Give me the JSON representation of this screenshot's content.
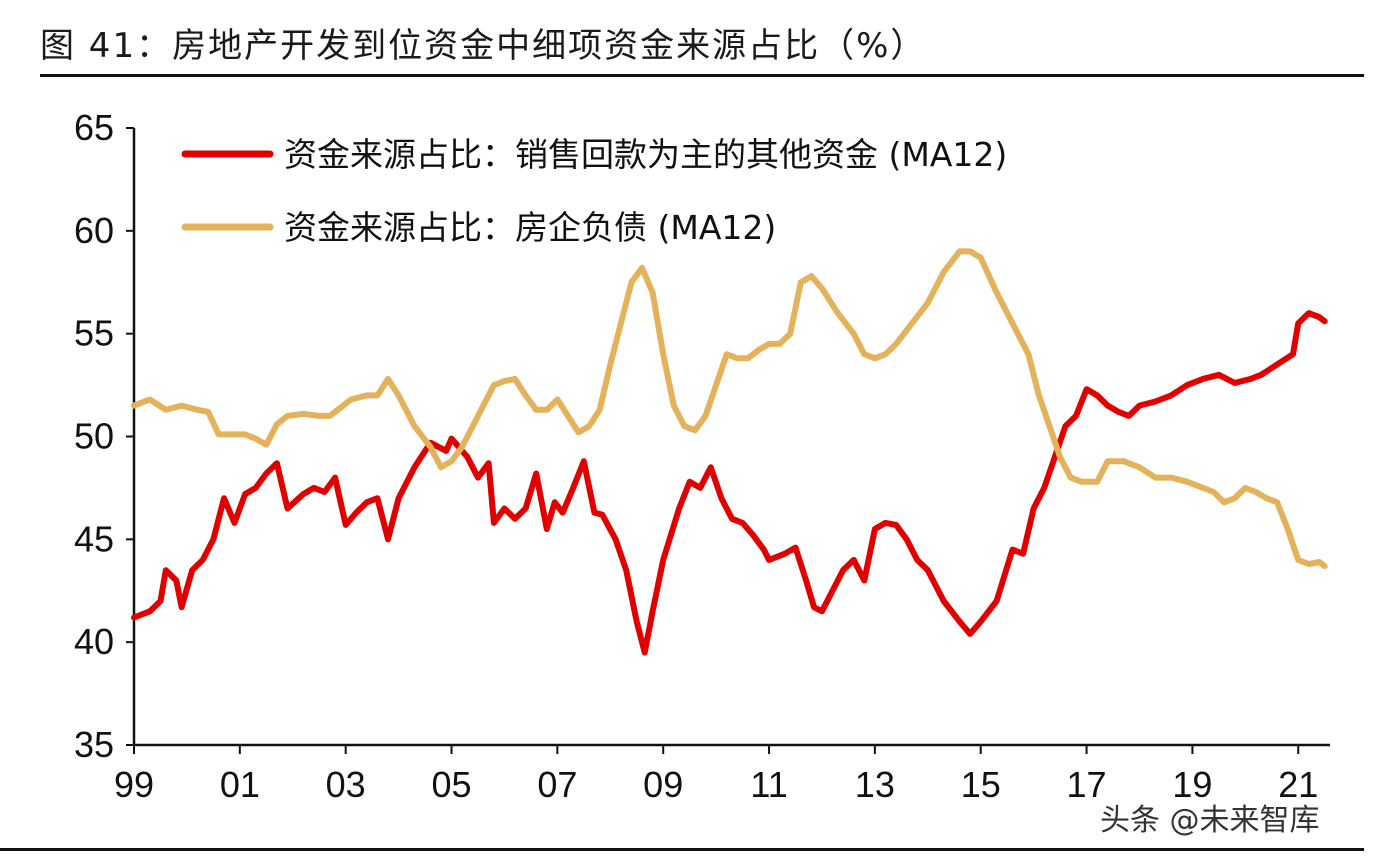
{
  "title": "图 41：房地产开发到位资金中细项资金来源占比（%）",
  "watermark": "头条 @未来智库",
  "chart_data": {
    "type": "line",
    "title": "图 41：房地产开发到位资金中细项资金来源占比（%）",
    "unit": "%",
    "xlabel": "",
    "ylabel": "",
    "ylim": [
      35,
      65
    ],
    "yticks": [
      "35",
      "40",
      "45",
      "50",
      "55",
      "60",
      "65"
    ],
    "xlim": [
      1999,
      2021.6
    ],
    "xticks": [
      "99",
      "01",
      "03",
      "05",
      "07",
      "09",
      "11",
      "13",
      "15",
      "17",
      "19",
      "21"
    ],
    "legend_position": "top-left",
    "series": [
      {
        "name": "资金来源占比：销售回款为主的其他资金 (MA12)",
        "color": "#e00000",
        "points": [
          [
            1999.0,
            41.2
          ],
          [
            1999.3,
            41.5
          ],
          [
            1999.5,
            42.0
          ],
          [
            1999.6,
            43.5
          ],
          [
            1999.8,
            43.0
          ],
          [
            1999.9,
            41.7
          ],
          [
            2000.1,
            43.5
          ],
          [
            2000.3,
            44.0
          ],
          [
            2000.5,
            45.0
          ],
          [
            2000.7,
            47.0
          ],
          [
            2000.9,
            45.8
          ],
          [
            2001.1,
            47.2
          ],
          [
            2001.3,
            47.5
          ],
          [
            2001.5,
            48.2
          ],
          [
            2001.7,
            48.7
          ],
          [
            2001.9,
            46.5
          ],
          [
            2002.2,
            47.2
          ],
          [
            2002.4,
            47.5
          ],
          [
            2002.6,
            47.3
          ],
          [
            2002.8,
            48.0
          ],
          [
            2003.0,
            45.7
          ],
          [
            2003.2,
            46.3
          ],
          [
            2003.4,
            46.8
          ],
          [
            2003.6,
            47.0
          ],
          [
            2003.8,
            45.0
          ],
          [
            2004.0,
            47.0
          ],
          [
            2004.3,
            48.5
          ],
          [
            2004.6,
            49.7
          ],
          [
            2004.9,
            49.3
          ],
          [
            2005.0,
            49.9
          ],
          [
            2005.3,
            49.0
          ],
          [
            2005.5,
            48.0
          ],
          [
            2005.7,
            48.7
          ],
          [
            2005.8,
            45.8
          ],
          [
            2006.0,
            46.5
          ],
          [
            2006.2,
            46.0
          ],
          [
            2006.4,
            46.5
          ],
          [
            2006.6,
            48.2
          ],
          [
            2006.8,
            45.5
          ],
          [
            2006.95,
            46.8
          ],
          [
            2007.1,
            46.3
          ],
          [
            2007.3,
            47.5
          ],
          [
            2007.5,
            48.8
          ],
          [
            2007.7,
            46.3
          ],
          [
            2007.85,
            46.2
          ],
          [
            2008.1,
            45.0
          ],
          [
            2008.3,
            43.5
          ],
          [
            2008.5,
            41.0
          ],
          [
            2008.65,
            39.5
          ],
          [
            2008.8,
            41.5
          ],
          [
            2009.0,
            44.0
          ],
          [
            2009.3,
            46.5
          ],
          [
            2009.5,
            47.8
          ],
          [
            2009.7,
            47.5
          ],
          [
            2009.9,
            48.5
          ],
          [
            2010.1,
            47.0
          ],
          [
            2010.3,
            46.0
          ],
          [
            2010.5,
            45.8
          ],
          [
            2010.7,
            45.2
          ],
          [
            2010.9,
            44.5
          ],
          [
            2011.0,
            44.0
          ],
          [
            2011.3,
            44.3
          ],
          [
            2011.5,
            44.6
          ],
          [
            2011.7,
            43.0
          ],
          [
            2011.85,
            41.7
          ],
          [
            2012.0,
            41.5
          ],
          [
            2012.2,
            42.5
          ],
          [
            2012.4,
            43.5
          ],
          [
            2012.6,
            44.0
          ],
          [
            2012.8,
            43.0
          ],
          [
            2013.0,
            45.5
          ],
          [
            2013.2,
            45.8
          ],
          [
            2013.4,
            45.7
          ],
          [
            2013.6,
            45.0
          ],
          [
            2013.8,
            44.0
          ],
          [
            2014.0,
            43.5
          ],
          [
            2014.3,
            42.0
          ],
          [
            2014.6,
            41.0
          ],
          [
            2014.8,
            40.4
          ],
          [
            2015.0,
            41.0
          ],
          [
            2015.3,
            42.0
          ],
          [
            2015.6,
            44.5
          ],
          [
            2015.8,
            44.3
          ],
          [
            2016.0,
            46.5
          ],
          [
            2016.2,
            47.5
          ],
          [
            2016.4,
            49.0
          ],
          [
            2016.6,
            50.5
          ],
          [
            2016.8,
            51.0
          ],
          [
            2017.0,
            52.3
          ],
          [
            2017.2,
            52.0
          ],
          [
            2017.4,
            51.5
          ],
          [
            2017.6,
            51.2
          ],
          [
            2017.8,
            51.0
          ],
          [
            2018.0,
            51.5
          ],
          [
            2018.3,
            51.7
          ],
          [
            2018.6,
            52.0
          ],
          [
            2018.9,
            52.5
          ],
          [
            2019.2,
            52.8
          ],
          [
            2019.5,
            53.0
          ],
          [
            2019.8,
            52.6
          ],
          [
            2020.1,
            52.8
          ],
          [
            2020.3,
            53.0
          ],
          [
            2020.6,
            53.5
          ],
          [
            2020.9,
            54.0
          ],
          [
            2021.0,
            55.5
          ],
          [
            2021.2,
            56.0
          ],
          [
            2021.4,
            55.8
          ],
          [
            2021.5,
            55.6
          ]
        ]
      },
      {
        "name": "资金来源占比：房企负债 (MA12)",
        "color": "#e3b25a",
        "points": [
          [
            1999.0,
            51.5
          ],
          [
            1999.3,
            51.8
          ],
          [
            1999.6,
            51.3
          ],
          [
            1999.9,
            51.5
          ],
          [
            2000.2,
            51.3
          ],
          [
            2000.4,
            51.2
          ],
          [
            2000.6,
            50.1
          ],
          [
            2000.9,
            50.1
          ],
          [
            2001.1,
            50.1
          ],
          [
            2001.3,
            49.9
          ],
          [
            2001.5,
            49.6
          ],
          [
            2001.7,
            50.6
          ],
          [
            2001.9,
            51.0
          ],
          [
            2002.2,
            51.1
          ],
          [
            2002.5,
            51.0
          ],
          [
            2002.7,
            51.0
          ],
          [
            2002.9,
            51.4
          ],
          [
            2003.1,
            51.8
          ],
          [
            2003.4,
            52.0
          ],
          [
            2003.6,
            52.0
          ],
          [
            2003.8,
            52.8
          ],
          [
            2004.0,
            52.0
          ],
          [
            2004.3,
            50.5
          ],
          [
            2004.6,
            49.5
          ],
          [
            2004.8,
            48.5
          ],
          [
            2005.0,
            48.8
          ],
          [
            2005.2,
            49.5
          ],
          [
            2005.4,
            50.5
          ],
          [
            2005.6,
            51.5
          ],
          [
            2005.8,
            52.5
          ],
          [
            2006.0,
            52.7
          ],
          [
            2006.2,
            52.8
          ],
          [
            2006.4,
            52.0
          ],
          [
            2006.6,
            51.3
          ],
          [
            2006.8,
            51.3
          ],
          [
            2007.0,
            51.8
          ],
          [
            2007.2,
            51.0
          ],
          [
            2007.4,
            50.2
          ],
          [
            2007.6,
            50.5
          ],
          [
            2007.8,
            51.3
          ],
          [
            2008.0,
            53.5
          ],
          [
            2008.2,
            55.5
          ],
          [
            2008.4,
            57.5
          ],
          [
            2008.6,
            58.2
          ],
          [
            2008.8,
            57.0
          ],
          [
            2009.0,
            54.0
          ],
          [
            2009.2,
            51.5
          ],
          [
            2009.4,
            50.5
          ],
          [
            2009.6,
            50.3
          ],
          [
            2009.8,
            51.0
          ],
          [
            2010.0,
            52.5
          ],
          [
            2010.2,
            54.0
          ],
          [
            2010.4,
            53.8
          ],
          [
            2010.6,
            53.8
          ],
          [
            2010.8,
            54.2
          ],
          [
            2011.0,
            54.5
          ],
          [
            2011.2,
            54.5
          ],
          [
            2011.4,
            55.0
          ],
          [
            2011.6,
            57.5
          ],
          [
            2011.8,
            57.8
          ],
          [
            2012.0,
            57.2
          ],
          [
            2012.3,
            56.0
          ],
          [
            2012.6,
            55.0
          ],
          [
            2012.8,
            54.0
          ],
          [
            2013.0,
            53.8
          ],
          [
            2013.2,
            54.0
          ],
          [
            2013.4,
            54.5
          ],
          [
            2013.7,
            55.5
          ],
          [
            2014.0,
            56.5
          ],
          [
            2014.3,
            58.0
          ],
          [
            2014.6,
            59.0
          ],
          [
            2014.8,
            59.0
          ],
          [
            2015.0,
            58.7
          ],
          [
            2015.3,
            57.0
          ],
          [
            2015.6,
            55.5
          ],
          [
            2015.9,
            54.0
          ],
          [
            2016.1,
            52.0
          ],
          [
            2016.3,
            50.5
          ],
          [
            2016.5,
            49.0
          ],
          [
            2016.7,
            48.0
          ],
          [
            2016.9,
            47.8
          ],
          [
            2017.2,
            47.8
          ],
          [
            2017.4,
            48.8
          ],
          [
            2017.7,
            48.8
          ],
          [
            2018.0,
            48.5
          ],
          [
            2018.3,
            48.0
          ],
          [
            2018.6,
            48.0
          ],
          [
            2018.9,
            47.8
          ],
          [
            2019.2,
            47.5
          ],
          [
            2019.4,
            47.3
          ],
          [
            2019.6,
            46.8
          ],
          [
            2019.8,
            47.0
          ],
          [
            2020.0,
            47.5
          ],
          [
            2020.2,
            47.3
          ],
          [
            2020.4,
            47.0
          ],
          [
            2020.6,
            46.8
          ],
          [
            2020.8,
            45.5
          ],
          [
            2021.0,
            44.0
          ],
          [
            2021.2,
            43.8
          ],
          [
            2021.4,
            43.9
          ],
          [
            2021.5,
            43.7
          ]
        ]
      }
    ]
  }
}
